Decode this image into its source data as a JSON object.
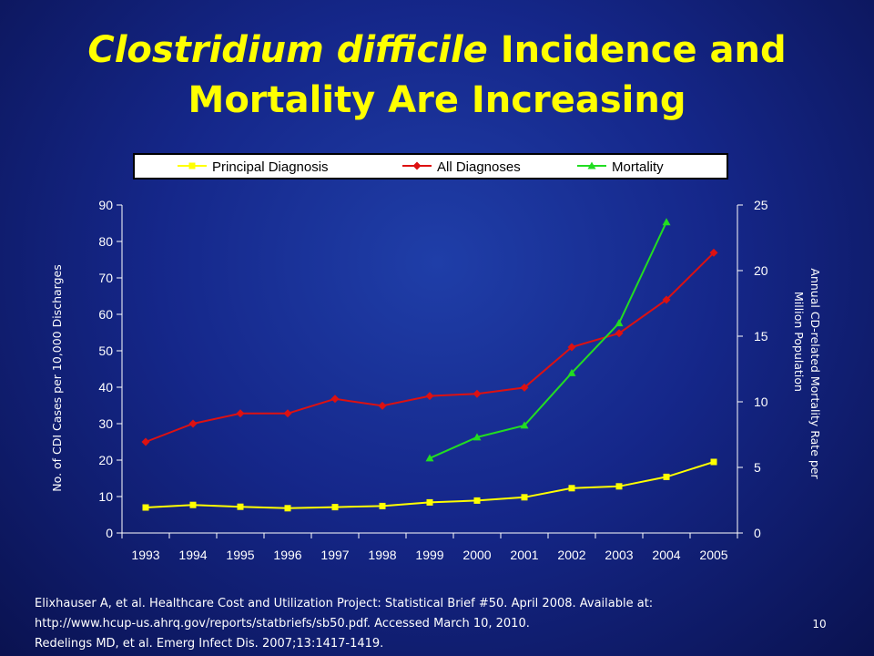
{
  "slide": {
    "title_italic": "Clostridium difficile",
    "title_rest_line1": " Incidence and",
    "title_line2": "Mortality Are Increasing",
    "footer_lines": [
      "Elixhauser A, et al. Healthcare Cost and Utilization Project: Statistical Brief #50. April 2008. Available at:",
      "http://www.hcup-us.ahrq.gov/reports/statbriefs/sb50.pdf. Accessed March 10, 2010.",
      "Redelings MD, et al. Emerg Infect Dis. 2007;13:1417-1419."
    ],
    "slide_number": "10"
  },
  "colors": {
    "title": "#ffff00",
    "principal": "#ffff00",
    "all": "#dd1111",
    "mortality": "#22dd22",
    "legend_bg": "#ffffff",
    "text": "#ffffff"
  },
  "chart_data": {
    "type": "line",
    "legend_position": "top",
    "grid": false,
    "x": [
      "1993",
      "1994",
      "1995",
      "1996",
      "1997",
      "1998",
      "1999",
      "2000",
      "2001",
      "2002",
      "2003",
      "2004",
      "2005"
    ],
    "ylabel": "No. of CDI Cases per 10,000 Discharges",
    "ylabel_right": "Annual CD-related Mortality Rate per Million Population",
    "ylim": [
      0,
      90
    ],
    "yticks": [
      "0",
      "10",
      "20",
      "30",
      "40",
      "50",
      "60",
      "70",
      "80",
      "90"
    ],
    "ylim_right": [
      0,
      25
    ],
    "yticks_right": [
      "0",
      "5",
      "10",
      "15",
      "20",
      "25"
    ],
    "series": [
      {
        "name": "Principal Diagnosis",
        "axis": "left",
        "marker": "square",
        "values": [
          7,
          7.7,
          7.2,
          6.8,
          7.1,
          7.4,
          8.4,
          8.9,
          9.8,
          12.3,
          12.8,
          15.4,
          19.5
        ]
      },
      {
        "name": "All Diagnoses",
        "axis": "left",
        "marker": "diamond",
        "values": [
          25,
          30,
          32.8,
          32.8,
          36.8,
          34.9,
          37.6,
          38.2,
          39.9,
          51,
          54.8,
          64,
          76.9
        ]
      },
      {
        "name": "Mortality",
        "axis": "right",
        "marker": "triangle",
        "values": [
          null,
          null,
          null,
          null,
          null,
          null,
          5.7,
          7.3,
          8.2,
          12.2,
          16,
          23.7,
          null
        ]
      }
    ]
  }
}
